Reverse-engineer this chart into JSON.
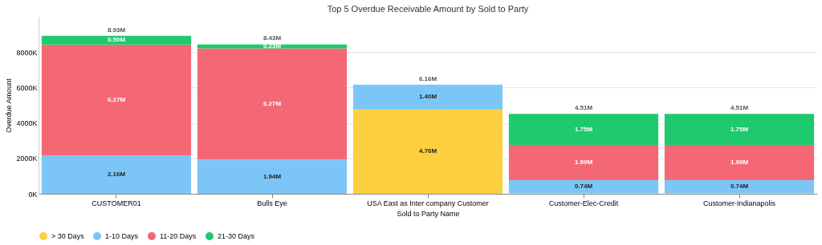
{
  "chart_data": {
    "type": "bar",
    "stacked": true,
    "title": "Top 5 Overdue Receivable Amount by Sold to Party",
    "xlabel": "Sold to Party Name",
    "ylabel": "Overdue Amount",
    "categories": [
      "CUSTOMER01",
      "Bulls Eye",
      "USA East as Inter company Customer",
      "Customer-Elec-Credit",
      "Customer-Indianapolis"
    ],
    "series": [
      {
        "name": "> 30 Days",
        "color": "#fcd03f",
        "values": [
          0,
          0,
          4760000,
          30000,
          30000
        ],
        "value_labels": [
          null,
          null,
          "4.76M",
          null,
          null
        ]
      },
      {
        "name": "1-10 Days",
        "color": "#7cc6f7",
        "values": [
          2160000,
          1940000,
          1400000,
          740000,
          740000
        ],
        "value_labels": [
          "2.16M",
          "1.94M",
          "1.40M",
          "0.74M",
          "0.74M"
        ]
      },
      {
        "name": "11-20 Days",
        "color": "#f46876",
        "values": [
          6270000,
          6270000,
          0,
          1990000,
          1990000
        ],
        "value_labels": [
          "6.27M",
          "6.27M",
          null,
          "1.99M",
          "1.99M"
        ]
      },
      {
        "name": "21-30 Days",
        "color": "#1fc96e",
        "values": [
          500000,
          230000,
          0,
          1750000,
          1750000
        ],
        "value_labels": [
          "0.50M",
          "0.23M",
          null,
          "1.75M",
          "1.75M"
        ]
      }
    ],
    "totals": [
      "8.93M",
      "8.43M",
      "6.16M",
      "4.51M",
      "4.51M"
    ],
    "ylim": [
      0,
      10000000
    ],
    "yticks": [
      {
        "value": 0,
        "label": "0K"
      },
      {
        "value": 2000000,
        "label": "2000K"
      },
      {
        "value": 4000000,
        "label": "4000K"
      },
      {
        "value": 6000000,
        "label": "6000K"
      },
      {
        "value": 8000000,
        "label": "8000K"
      }
    ],
    "grid": "y",
    "legend": "bottom"
  }
}
